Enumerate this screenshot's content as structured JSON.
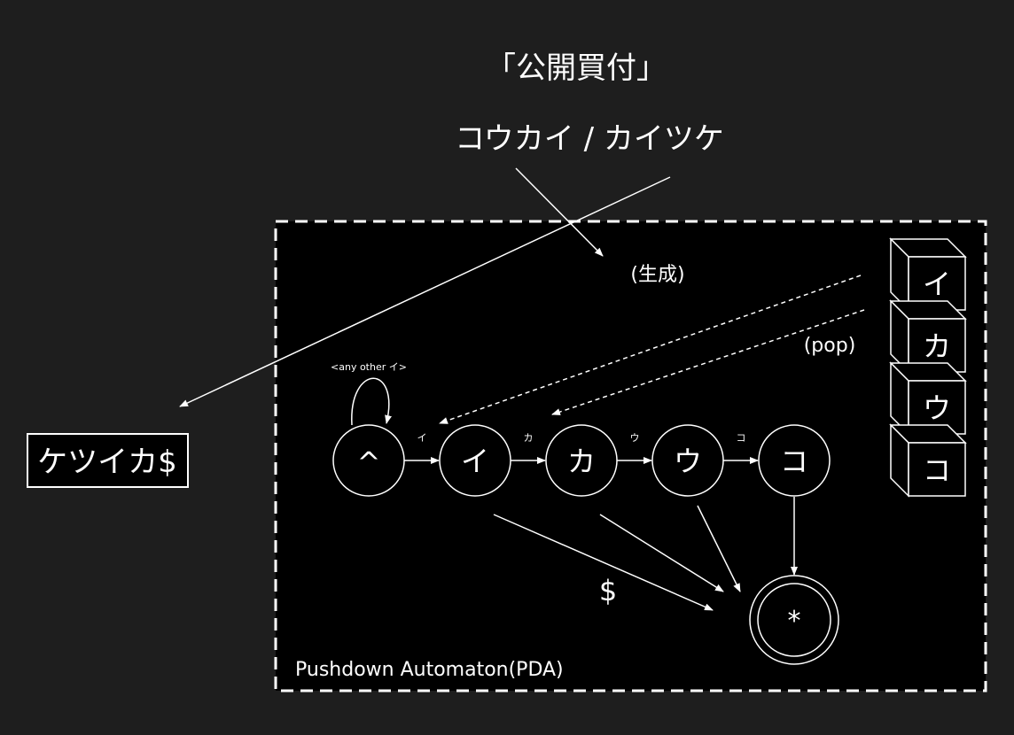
{
  "title": "「公開買付」",
  "reading": "コウカイ / カイツケ",
  "output_box": "ケツイカ$",
  "generate_label": "(生成)",
  "pop_label": "(pop)",
  "pda_label": "Pushdown Automaton(PDA)",
  "self_loop_label": "<any other イ>",
  "states": [
    "^",
    "イ",
    "カ",
    "ウ",
    "コ"
  ],
  "transition_labels": [
    "イ",
    "カ",
    "ウ",
    "コ"
  ],
  "end_symbol": "$",
  "accept_state": "*",
  "stack": [
    "イ",
    "カ",
    "ウ",
    "コ"
  ],
  "colors": {
    "background": "#1e1e1e",
    "box_fill": "#000000",
    "stroke": "#ffffff"
  }
}
